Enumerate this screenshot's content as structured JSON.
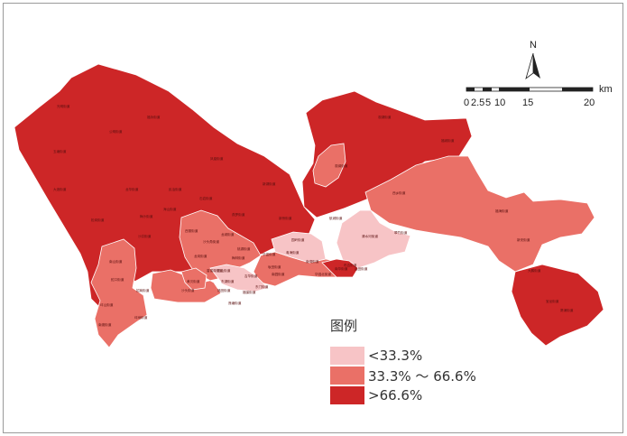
{
  "colors": {
    "low": "#f7c4c6",
    "mid": "#ea7067",
    "high": "#cd2627",
    "border": "#ffffff"
  },
  "north_arrow": {
    "label": "N",
    "icon": "north-arrow-icon"
  },
  "scale_bar": {
    "ticks": [
      "0",
      "2.5",
      "5",
      "10",
      "15",
      "20"
    ],
    "unit": "km"
  },
  "legend": {
    "title": "图例",
    "items": [
      {
        "label": "<33.3%",
        "class": "low"
      },
      {
        "label": "33.3% ～ 66.6%",
        "class": "mid"
      },
      {
        "label": ">66.6%",
        "class": "high"
      }
    ]
  },
  "district_labels": [
    "光明街道",
    "公明街道",
    "福永街道",
    "玉塘街道",
    "凤凰街道",
    "新湖街道",
    "观澜街道",
    "观湖街道",
    "福城街道",
    "大浪街道",
    "龙华街道",
    "民治街道",
    "石岩街道",
    "松岗街道",
    "沙井街道",
    "燕罗街道",
    "新桥街道",
    "航城街道",
    "西乡街道",
    "福海街道",
    "新安街道",
    "西丽街道",
    "桃源街道",
    "粤海街道",
    "南山街道",
    "蛇口街道",
    "招商街道",
    "坪山街道",
    "坪地街道",
    "龙岗街道",
    "龙城街道",
    "园山街道",
    "吉华街道",
    "坂田街道",
    "南湾街道",
    "布吉街道",
    "清水河街道",
    "翠竹街道",
    "黄贝街道",
    "东湖街道",
    "莲塘街道",
    "东门街道",
    "南园街道",
    "园岭街道",
    "华富街道",
    "梅林街道",
    "香蜜湖街道",
    "沙头街道",
    "福保街道",
    "福田街道",
    "华强北街道",
    "南华街道",
    "盐田街道",
    "沙头角街道",
    "海山街道",
    "梅沙街道",
    "宝龙街道",
    "葵涌街道",
    "大鹏街道",
    "南澳街道"
  ]
}
